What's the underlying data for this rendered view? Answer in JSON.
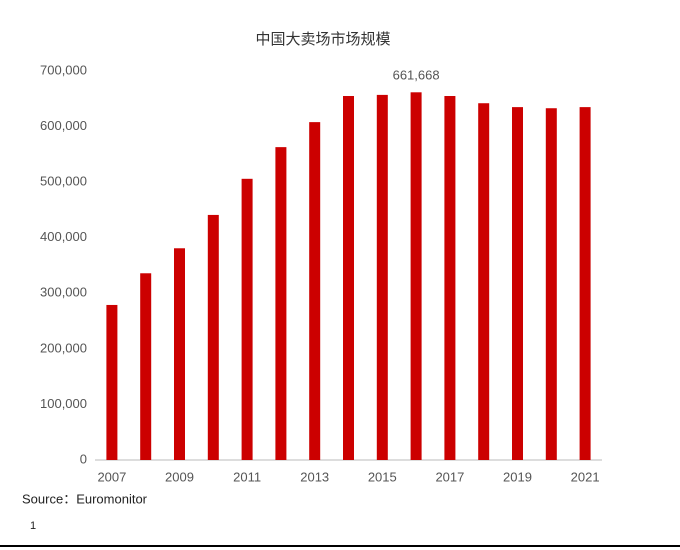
{
  "chart_data": {
    "type": "bar",
    "title": "中国大卖场市场规模",
    "categories": [
      "2007",
      null,
      "2009",
      null,
      "2011",
      null,
      "2013",
      null,
      "2015",
      null,
      "2017",
      null,
      "2019",
      null,
      "2021"
    ],
    "values": [
      279000,
      336000,
      381000,
      441000,
      506000,
      563000,
      608000,
      655000,
      657000,
      661668,
      655000,
      642000,
      635000,
      633000,
      635000
    ],
    "value_labels": [
      null,
      null,
      null,
      null,
      null,
      null,
      null,
      null,
      null,
      "661,668",
      null,
      null,
      null,
      null,
      null
    ],
    "color": "#cc0000",
    "ylim": [
      0,
      700000
    ],
    "yticks": [
      0,
      {
        "value": 100000,
        "label": "100,000"
      },
      {
        "value": 200000,
        "label": "200,000"
      },
      {
        "value": 300000,
        "label": "300,000"
      },
      {
        "value": 400000,
        "label": "400,000"
      },
      {
        "value": 500000,
        "label": "500,000"
      },
      {
        "value": 600000,
        "label": "600,000"
      },
      {
        "value": 700000,
        "label": "700,000"
      }
    ],
    "grid": false
  },
  "footer": {
    "source": "Source：Euromonitor",
    "page": "1"
  }
}
